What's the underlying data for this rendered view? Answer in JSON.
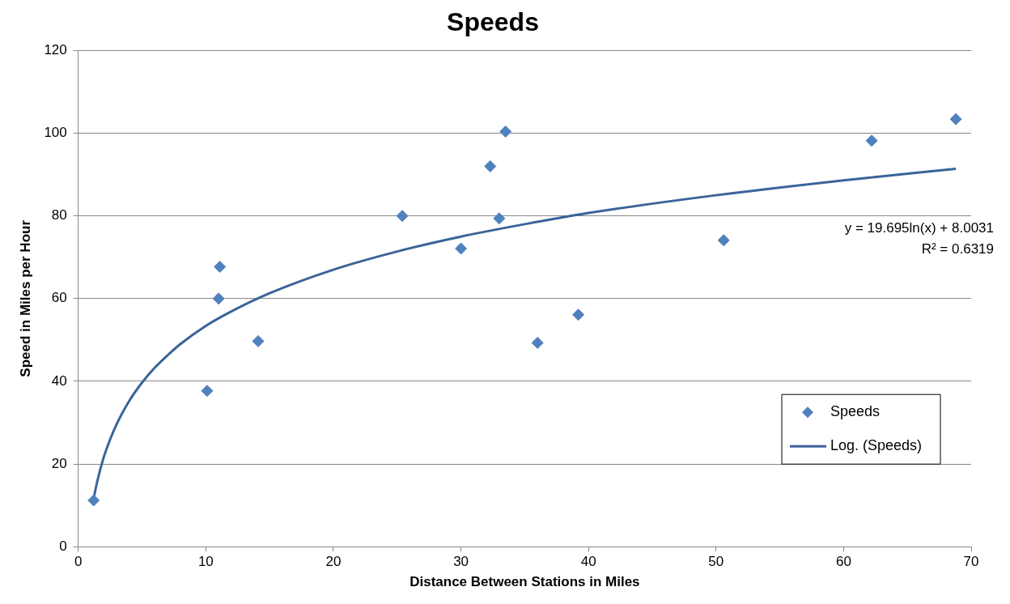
{
  "chart_data": {
    "type": "scatter",
    "title": "Speeds",
    "xlabel": "Distance Between Stations in Miles",
    "ylabel": "Speed in Miles per Hour",
    "xlim": [
      0,
      70
    ],
    "xticks": [
      0,
      10,
      20,
      30,
      40,
      50,
      60,
      70
    ],
    "ylim": [
      0,
      120
    ],
    "yticks": [
      0,
      20,
      40,
      60,
      80,
      100,
      120
    ],
    "grid": "y",
    "legend": "bottom right",
    "marker": "diamond",
    "annotations": [
      "y = 19.695ln(x) + 8.0031",
      "R² = 0.6319"
    ],
    "series": [
      {
        "name": "Speeds",
        "color": "#4f81bd",
        "x": [
          1.2,
          10.1,
          11.1,
          11.0,
          14.1,
          25.4,
          30.0,
          32.3,
          33.0,
          33.5,
          36.0,
          39.2,
          50.6,
          62.2,
          68.8
        ],
        "values": [
          11.2,
          37.7,
          67.7,
          60,
          49.7,
          80,
          72.1,
          92,
          79.4,
          100.4,
          49.3,
          56.1,
          74.1,
          98.2,
          103.4
        ]
      },
      {
        "name": "Log. (Speeds)",
        "type": "line",
        "color": "#3a6499",
        "marker": "none",
        "x": [
          1.2,
          1.5,
          2,
          2.5,
          3,
          4,
          5,
          6,
          7,
          8,
          10,
          12,
          15,
          20,
          25,
          30,
          35,
          40,
          50,
          60,
          68.8
        ],
        "values": [
          11.6,
          16,
          21.7,
          26,
          29.6,
          35.3,
          39.7,
          43.3,
          46.3,
          49,
          53.4,
          56.9,
          61.3,
          67,
          71.4,
          75,
          78,
          80.7,
          85,
          88.6,
          91.4
        ]
      }
    ]
  }
}
